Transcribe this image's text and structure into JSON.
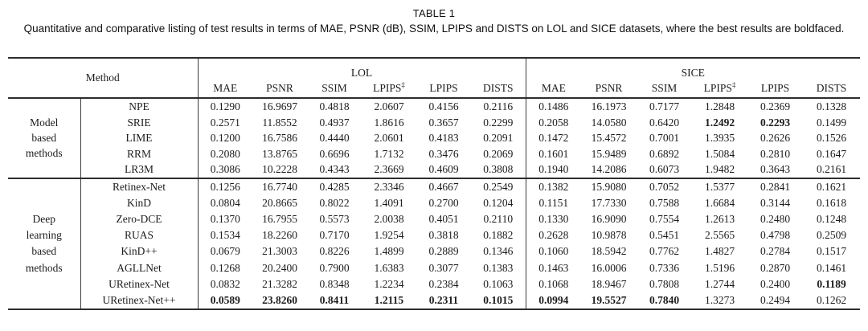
{
  "title": "TABLE 1",
  "caption": "Quantitative and comparative listing of test results in terms of MAE, PSNR (dB), SSIM, LPIPS and DISTS on LOL and SICE datasets, where the best results are boldfaced.",
  "table": {
    "method_header": "Method",
    "datasets": [
      "LOL",
      "SICE"
    ],
    "metric_headers": [
      {
        "label": "MAE",
        "sup": ""
      },
      {
        "label": "PSNR",
        "sup": ""
      },
      {
        "label": "SSIM",
        "sup": ""
      },
      {
        "label": "LPIPS",
        "sup": "‡"
      },
      {
        "label": "LPIPS",
        "sup": ""
      },
      {
        "label": "DISTS",
        "sup": ""
      }
    ],
    "groups": [
      {
        "label": "Model\nbased\nmethods",
        "rows": [
          {
            "method": "NPE",
            "lol": [
              "0.1290",
              "16.9697",
              "0.4818",
              "2.0607",
              "0.4156",
              "0.2116"
            ],
            "bold_lol": [],
            "sice": [
              "0.1486",
              "16.1973",
              "0.7177",
              "1.2848",
              "0.2369",
              "0.1328"
            ],
            "bold_sice": []
          },
          {
            "method": "SRIE",
            "lol": [
              "0.2571",
              "11.8552",
              "0.4937",
              "1.8616",
              "0.3657",
              "0.2299"
            ],
            "bold_lol": [],
            "sice": [
              "0.2058",
              "14.0580",
              "0.6420",
              "1.2492",
              "0.2293",
              "0.1499"
            ],
            "bold_sice": [
              3,
              4
            ]
          },
          {
            "method": "LIME",
            "lol": [
              "0.1200",
              "16.7586",
              "0.4440",
              "2.0601",
              "0.4183",
              "0.2091"
            ],
            "bold_lol": [],
            "sice": [
              "0.1472",
              "15.4572",
              "0.7001",
              "1.3935",
              "0.2626",
              "0.1526"
            ],
            "bold_sice": []
          },
          {
            "method": "RRM",
            "lol": [
              "0.2080",
              "13.8765",
              "0.6696",
              "1.7132",
              "0.3476",
              "0.2069"
            ],
            "bold_lol": [],
            "sice": [
              "0.1601",
              "15.9489",
              "0.6892",
              "1.5084",
              "0.2810",
              "0.1647"
            ],
            "bold_sice": []
          },
          {
            "method": "LR3M",
            "lol": [
              "0.3086",
              "10.2228",
              "0.4343",
              "2.3669",
              "0.4609",
              "0.3808"
            ],
            "bold_lol": [],
            "sice": [
              "0.1940",
              "14.2086",
              "0.6073",
              "1.9482",
              "0.3643",
              "0.2161"
            ],
            "bold_sice": []
          }
        ]
      },
      {
        "label": "Deep\nlearning\nbased\nmethods",
        "rows": [
          {
            "method": "Retinex-Net",
            "lol": [
              "0.1256",
              "16.7740",
              "0.4285",
              "2.3346",
              "0.4667",
              "0.2549"
            ],
            "bold_lol": [],
            "sice": [
              "0.1382",
              "15.9080",
              "0.7052",
              "1.5377",
              "0.2841",
              "0.1621"
            ],
            "bold_sice": []
          },
          {
            "method": "KinD",
            "lol": [
              "0.0804",
              "20.8665",
              "0.8022",
              "1.4091",
              "0.2700",
              "0.1204"
            ],
            "bold_lol": [],
            "sice": [
              "0.1151",
              "17.7330",
              "0.7588",
              "1.6684",
              "0.3144",
              "0.1618"
            ],
            "bold_sice": []
          },
          {
            "method": "Zero-DCE",
            "lol": [
              "0.1370",
              "16.7955",
              "0.5573",
              "2.0038",
              "0.4051",
              "0.2110"
            ],
            "bold_lol": [],
            "sice": [
              "0.1330",
              "16.9090",
              "0.7554",
              "1.2613",
              "0.2480",
              "0.1248"
            ],
            "bold_sice": []
          },
          {
            "method": "RUAS",
            "lol": [
              "0.1534",
              "18.2260",
              "0.7170",
              "1.9254",
              "0.3818",
              "0.1882"
            ],
            "bold_lol": [],
            "sice": [
              "0.2628",
              "10.9878",
              "0.5451",
              "2.5565",
              "0.4798",
              "0.2509"
            ],
            "bold_sice": []
          },
          {
            "method": "KinD++",
            "lol": [
              "0.0679",
              "21.3003",
              "0.8226",
              "1.4899",
              "0.2889",
              "0.1346"
            ],
            "bold_lol": [],
            "sice": [
              "0.1060",
              "18.5942",
              "0.7762",
              "1.4827",
              "0.2784",
              "0.1517"
            ],
            "bold_sice": []
          },
          {
            "method": "AGLLNet",
            "lol": [
              "0.1268",
              "20.2400",
              "0.7900",
              "1.6383",
              "0.3077",
              "0.1383"
            ],
            "bold_lol": [],
            "sice": [
              "0.1463",
              "16.0006",
              "0.7336",
              "1.5196",
              "0.2870",
              "0.1461"
            ],
            "bold_sice": []
          },
          {
            "method": "URetinex-Net",
            "lol": [
              "0.0832",
              "21.3282",
              "0.8348",
              "1.2234",
              "0.2384",
              "0.1063"
            ],
            "bold_lol": [],
            "sice": [
              "0.1068",
              "18.9467",
              "0.7808",
              "1.2744",
              "0.2400",
              "0.1189"
            ],
            "bold_sice": [
              5
            ]
          },
          {
            "method": "URetinex-Net++",
            "lol": [
              "0.0589",
              "23.8260",
              "0.8411",
              "1.2115",
              "0.2311",
              "0.1015"
            ],
            "bold_lol": [
              0,
              1,
              2,
              3,
              4,
              5
            ],
            "sice": [
              "0.0994",
              "19.5527",
              "0.7840",
              "1.3273",
              "0.2494",
              "0.1262"
            ],
            "bold_sice": [
              0,
              1,
              2
            ]
          }
        ]
      }
    ]
  }
}
